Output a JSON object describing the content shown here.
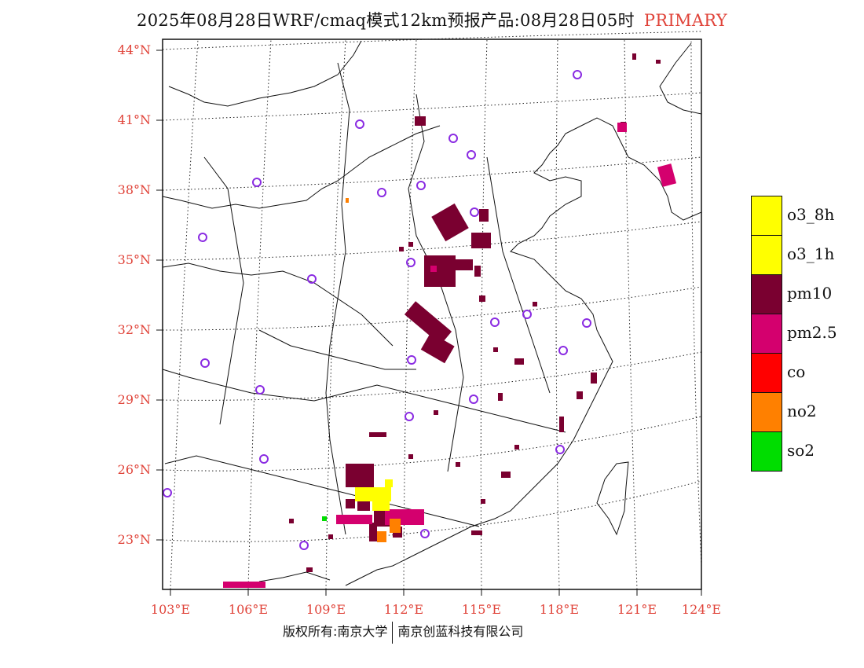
{
  "title": {
    "main": "2025年08月28日WRF/cmaq模式12km预报产品:08月28日05时",
    "tag": "PRIMARY"
  },
  "colors": {
    "label_red": "#e0443a",
    "station_circle": "#8a2be2",
    "o3_8h": "#ffff00",
    "o3_1h": "#ffff00",
    "pm10": "#7a0030",
    "pm25": "#d4006e",
    "co": "#ff0000",
    "no2": "#ff8000",
    "so2": "#00dd00"
  },
  "axes": {
    "lat_ticks": [
      "44°N",
      "41°N",
      "38°N",
      "35°N",
      "32°N",
      "29°N",
      "26°N",
      "23°N"
    ],
    "lon_ticks": [
      "103°E",
      "106°E",
      "109°E",
      "112°E",
      "115°E",
      "118°E",
      "121°E",
      "124°E"
    ]
  },
  "legend": {
    "items": [
      {
        "label": "o3_8h",
        "color": "#ffff00"
      },
      {
        "label": "o3_1h",
        "color": "#ffff00"
      },
      {
        "label": "pm10",
        "color": "#7a0030"
      },
      {
        "label": "pm2.5",
        "color": "#d4006e"
      },
      {
        "label": "co",
        "color": "#ff0000"
      },
      {
        "label": "no2",
        "color": "#ff8000"
      },
      {
        "label": "so2",
        "color": "#00dd00"
      }
    ]
  },
  "footer": {
    "left": "版权所有:南京大学",
    "right": "南京创蓝科技有限公司"
  }
}
